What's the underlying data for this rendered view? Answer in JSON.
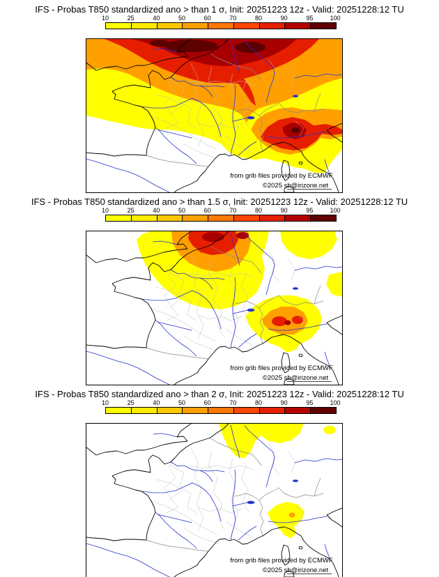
{
  "colorbar": {
    "ticks": [
      "10",
      "25",
      "40",
      "50",
      "60",
      "70",
      "80",
      "90",
      "95",
      "100"
    ],
    "segment_colors": [
      "#ffff00",
      "#ffeb00",
      "#ffc800",
      "#ffa000",
      "#ff7800",
      "#ff4600",
      "#e62000",
      "#b40000",
      "#600000"
    ]
  },
  "attribution": {
    "source": "from grib files provided by ECMWF",
    "copyright": "©2025 sb@irizone.net"
  },
  "panels": [
    {
      "title": "IFS - Probas T850  standardized ano > than 1 σ, Init: 20251223 12z - Valid: 20251228:12 TU"
    },
    {
      "title": "IFS - Probas T850  standardized ano > than 1.5 σ, Init: 20251223 12z - Valid: 20251228:12 TU"
    },
    {
      "title": "IFS - Probas T850  standardized ano > than 2 σ, Init: 20251223 12z - Valid: 20251228:12 TU"
    }
  ],
  "map_colors": {
    "coastline": "#000000",
    "rivers": "#2233cc",
    "country_borders": "#8a8a8a",
    "department_borders": "#bdbdbd"
  }
}
